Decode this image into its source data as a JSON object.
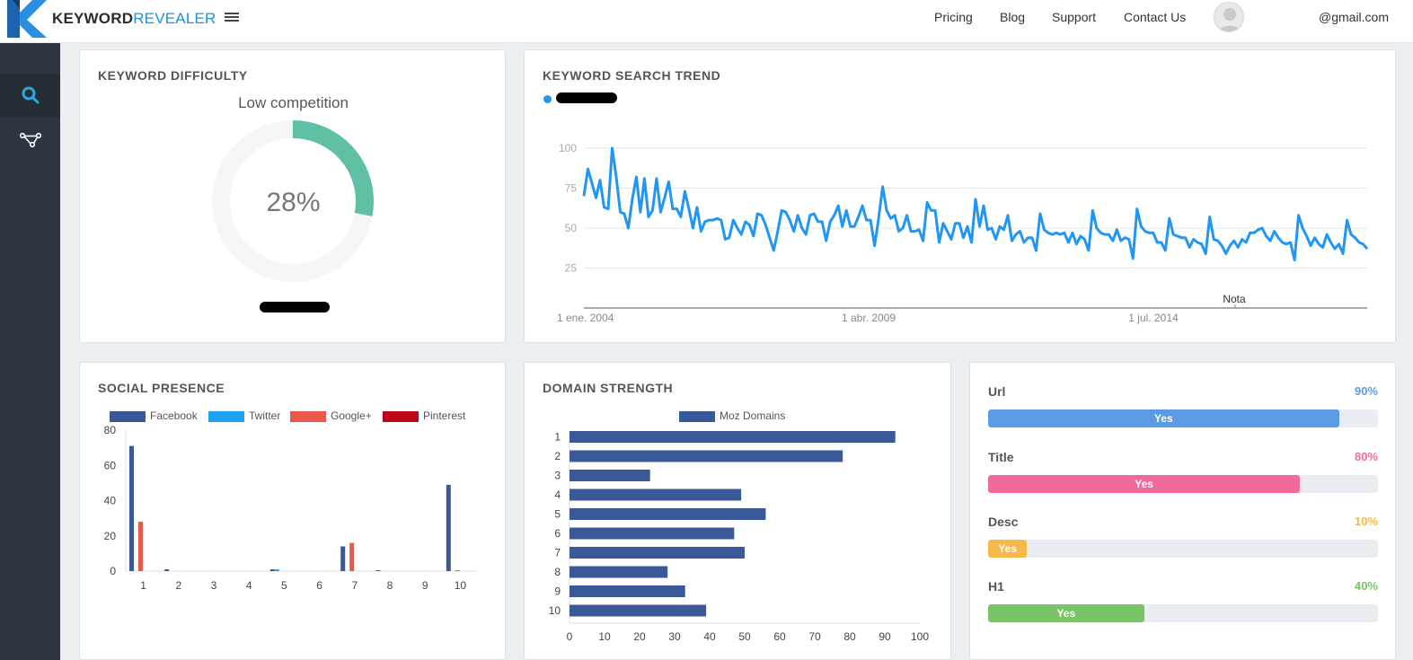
{
  "brand": {
    "keyword": "KEYWORD",
    "revealer": "REVEALER"
  },
  "nav": {
    "pricing": "Pricing",
    "blog": "Blog",
    "support": "Support",
    "contact": "Contact Us",
    "email": "@gmail.com"
  },
  "difficulty": {
    "title": "KEYWORD DIFFICULTY",
    "subtitle": "Low competition",
    "percent_label": "28%",
    "percent": 28
  },
  "trend": {
    "title": "KEYWORD SEARCH TREND",
    "annotation": "Nota",
    "chart_data": {
      "type": "line",
      "title": "KEYWORD SEARCH TREND",
      "y_ticks": [
        25,
        50,
        75,
        100
      ],
      "ylim": [
        0,
        100
      ],
      "x_tick_labels": [
        "1 ene. 2004",
        "1 abr. 2009",
        "1 jul. 2014"
      ],
      "values": [
        70,
        87,
        78,
        69,
        80,
        63,
        62,
        100,
        82,
        60,
        59,
        50,
        68,
        82,
        60,
        81,
        57,
        61,
        81,
        60,
        69,
        79,
        62,
        62,
        57,
        73,
        62,
        50,
        63,
        48,
        54,
        55,
        55,
        56,
        55,
        43,
        44,
        55,
        50,
        46,
        54,
        52,
        45,
        59,
        58,
        52,
        44,
        36,
        48,
        61,
        60,
        55,
        48,
        58,
        50,
        46,
        58,
        59,
        54,
        54,
        42,
        54,
        58,
        64,
        51,
        61,
        51,
        51,
        57,
        64,
        55,
        55,
        39,
        56,
        76,
        61,
        56,
        58,
        48,
        50,
        58,
        48,
        48,
        49,
        42,
        66,
        61,
        61,
        41,
        53,
        48,
        43,
        53,
        53,
        44,
        51,
        41,
        68,
        51,
        64,
        49,
        50,
        43,
        51,
        49,
        58,
        42,
        46,
        48,
        41,
        44,
        44,
        36,
        59,
        49,
        47,
        46,
        47,
        46,
        47,
        41,
        47,
        40,
        45,
        43,
        36,
        61,
        50,
        47,
        46,
        46,
        42,
        49,
        42,
        44,
        43,
        31,
        62,
        51,
        48,
        47,
        47,
        41,
        41,
        36,
        56,
        46,
        45,
        44,
        44,
        38,
        43,
        41,
        40,
        34,
        57,
        43,
        42,
        39,
        34,
        39,
        42,
        38,
        43,
        41,
        47,
        47,
        49,
        50,
        45,
        42,
        48,
        44,
        41,
        40,
        41,
        30,
        58,
        50,
        45,
        39,
        44,
        40,
        38,
        46,
        41,
        37,
        40,
        34,
        55,
        46,
        44,
        41,
        40,
        37
      ]
    }
  },
  "social": {
    "title": "SOCIAL PRESENCE",
    "chart_data": {
      "type": "bar",
      "categories": [
        "1",
        "2",
        "3",
        "4",
        "5",
        "6",
        "7",
        "8",
        "9",
        "10"
      ],
      "ylim": [
        0,
        80
      ],
      "y_ticks": [
        0,
        20,
        40,
        60,
        80
      ],
      "series": [
        {
          "name": "Facebook",
          "color": "#3b5998",
          "values": [
            71,
            1,
            0,
            0,
            1,
            0,
            14,
            0.5,
            0,
            49
          ]
        },
        {
          "name": "Twitter",
          "color": "#1da1f2",
          "values": [
            0,
            0,
            0,
            0,
            1,
            0,
            0,
            0,
            0,
            0
          ]
        },
        {
          "name": "Google+",
          "color": "#e9594b",
          "values": [
            28,
            0,
            0,
            0,
            0,
            0,
            16,
            0,
            0,
            0.5
          ]
        },
        {
          "name": "Pinterest",
          "color": "#bd081c",
          "values": [
            0,
            0,
            0,
            0,
            0,
            0,
            0,
            0,
            0,
            0
          ]
        }
      ]
    }
  },
  "domain": {
    "title": "DOMAIN STRENGTH",
    "chart_data": {
      "type": "bar",
      "orientation": "horizontal",
      "categories": [
        "1",
        "2",
        "3",
        "4",
        "5",
        "6",
        "7",
        "8",
        "9",
        "10"
      ],
      "series": [
        {
          "name": "Moz Domains",
          "color": "#3b5998",
          "values": [
            93,
            78,
            23,
            49,
            56,
            47,
            50,
            28,
            33,
            39
          ]
        }
      ],
      "xlim": [
        0,
        100
      ],
      "x_ticks": [
        0,
        10,
        20,
        30,
        40,
        50,
        60,
        70,
        80,
        90,
        100
      ]
    }
  },
  "seo": [
    {
      "label": "Url",
      "percent_label": "90%",
      "fill_label": "Yes",
      "value": 90,
      "color": "#5b9be6"
    },
    {
      "label": "Title",
      "percent_label": "80%",
      "fill_label": "Yes",
      "value": 80,
      "color": "#f06b9c"
    },
    {
      "label": "Desc",
      "percent_label": "10%",
      "fill_label": "Yes",
      "value": 10,
      "color": "#f7b84b"
    },
    {
      "label": "H1",
      "percent_label": "40%",
      "fill_label": "Yes",
      "value": 40,
      "color": "#78c466"
    }
  ]
}
